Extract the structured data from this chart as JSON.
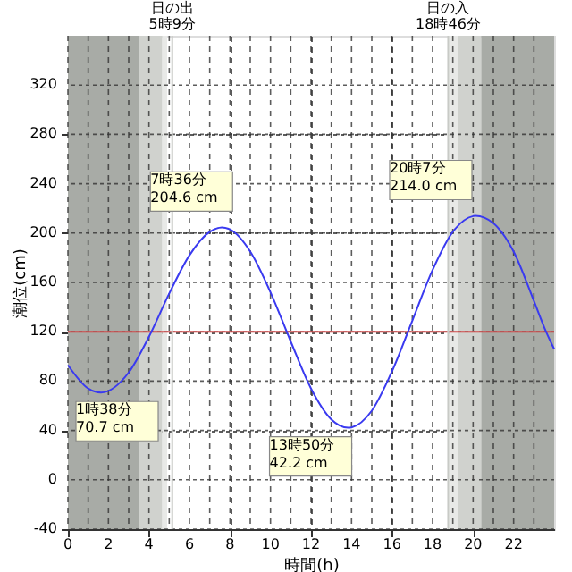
{
  "chart_data": {
    "type": "line",
    "xlabel": "時間(h)",
    "ylabel": "潮位(cm)",
    "series": [
      {
        "color": "#3a3af0",
        "x": [
          0,
          1,
          1.633,
          3,
          4,
          5,
          6,
          7,
          7.6,
          8,
          9,
          10,
          11,
          12,
          13,
          13.833,
          14,
          15,
          16,
          17,
          18,
          19,
          20,
          20.117,
          21,
          22,
          23,
          23.6,
          24
        ],
        "values": [
          93,
          74,
          70.7,
          87,
          116,
          151,
          182,
          201,
          204.6,
          203,
          185,
          152,
          112,
          74,
          49,
          42.2,
          42.5,
          56,
          88,
          129,
          170,
          201,
          213.7,
          214.0,
          208,
          185,
          145,
          120,
          106
        ]
      }
    ],
    "xlim": [
      0,
      24
    ],
    "ylim": [
      -40,
      360
    ],
    "xticks": [
      0,
      {
        "value": 1,
        "label": null
      },
      2,
      {
        "value": 3,
        "label": null
      },
      4,
      {
        "value": 5,
        "label": null
      },
      6,
      {
        "value": 7,
        "label": null
      },
      8,
      {
        "value": 9,
        "label": null
      },
      10,
      {
        "value": 11,
        "label": null
      },
      12,
      {
        "value": 13,
        "label": null
      },
      14,
      {
        "value": 15,
        "label": null
      },
      16,
      {
        "value": 17,
        "label": null
      },
      18,
      {
        "value": 19,
        "label": null
      },
      20,
      {
        "value": 21,
        "label": null
      },
      22,
      {
        "value": 23,
        "label": null
      }
    ],
    "yticks": [
      -40,
      0,
      40,
      80,
      120,
      160,
      200,
      240,
      280,
      320
    ],
    "grid": true,
    "marker": "none",
    "line_style": "solid",
    "ref_lines": [
      {
        "axis": "y",
        "value": 120,
        "color": "#d04848"
      },
      {
        "axis": "x",
        "value": 5.15,
        "label": "日の出\n5時9分",
        "color": "#c8cac6"
      },
      {
        "axis": "x",
        "value": 18.77,
        "label": "日の入\n18時46分",
        "color": "#c8cac6"
      }
    ],
    "bands": [
      {
        "axis": "x",
        "from": 0,
        "to": 3.5,
        "color": "#a8aba6"
      },
      {
        "axis": "x",
        "from": 3.5,
        "to": 4.66,
        "color": "#d0d2ce"
      },
      {
        "axis": "x",
        "from": 4.66,
        "to": 4.9,
        "color": "#e8e9e7"
      },
      {
        "axis": "x",
        "from": 18.8,
        "to": 19.25,
        "color": "#e8e9e7"
      },
      {
        "axis": "x",
        "from": 19.25,
        "to": 20.4,
        "color": "#d0d2ce"
      },
      {
        "axis": "x",
        "from": 20.4,
        "to": 24,
        "color": "#a8aba6"
      }
    ],
    "annotations": [
      {
        "text": "7時36分\n204.6 cm",
        "x": 7.6,
        "y": 204.6
      },
      {
        "text": "20時7分\n214.0 cm",
        "x": 20.117,
        "y": 214.0
      },
      {
        "text": "1時38分\n70.7 cm",
        "x": 1.633,
        "y": 70.7
      },
      {
        "text": "13時50分\n42.2 cm",
        "x": 13.833,
        "y": 42.2
      }
    ]
  }
}
